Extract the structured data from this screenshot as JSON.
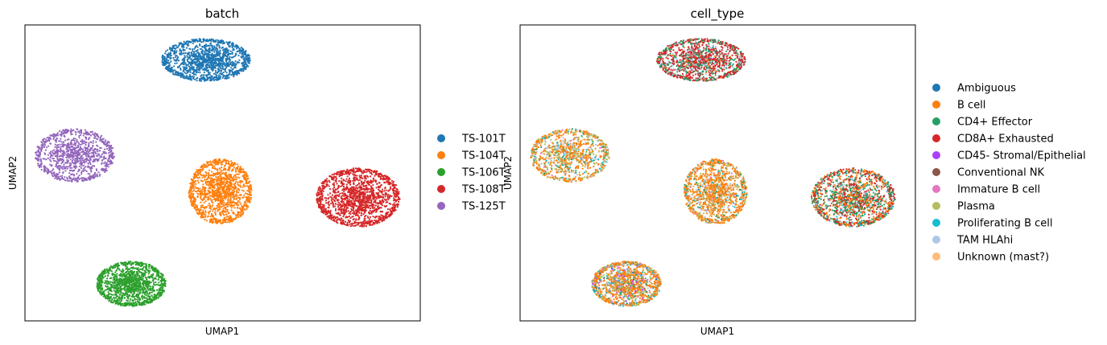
{
  "chart_data": [
    {
      "type": "scatter",
      "title": "batch",
      "xlabel": "UMAP1",
      "ylabel": "UMAP2",
      "xlim": [
        0,
        100
      ],
      "ylim": [
        0,
        100
      ],
      "grid": false,
      "legend_position": "right",
      "series": [
        {
          "name": "TS-101T",
          "color": "#1f77b4",
          "cluster": {
            "cx": 45.8,
            "cy": 88.2,
            "rx": 11.2,
            "ry": 7.2,
            "n": 1400
          }
        },
        {
          "name": "TS-104T",
          "color": "#ff7f0e",
          "cluster": {
            "cx": 49.4,
            "cy": 43.7,
            "rx": 8.0,
            "ry": 11.0,
            "n": 1400
          }
        },
        {
          "name": "TS-106T",
          "color": "#2ca02c",
          "cluster": {
            "cx": 26.9,
            "cy": 12.5,
            "rx": 8.8,
            "ry": 7.6,
            "n": 1400
          }
        },
        {
          "name": "TS-108T",
          "color": "#d62728",
          "cluster": {
            "cx": 84.3,
            "cy": 41.7,
            "rx": 10.6,
            "ry": 9.9,
            "n": 1600
          }
        },
        {
          "name": "TS-125T",
          "color": "#9467bd",
          "cluster": {
            "cx": 12.6,
            "cy": 55.9,
            "rx": 10.0,
            "ry": 9.0,
            "n": 1100
          }
        }
      ]
    },
    {
      "type": "scatter",
      "title": "cell_type",
      "xlabel": "UMAP1",
      "ylabel": "UMAP2",
      "xlim": [
        0,
        100
      ],
      "ylim": [
        0,
        100
      ],
      "grid": false,
      "legend_position": "right",
      "series": [
        {
          "name": "Ambiguous",
          "color": "#1f77b4"
        },
        {
          "name": "B cell",
          "color": "#ff7f0e"
        },
        {
          "name": "CD4+ Effector",
          "color": "#279e68"
        },
        {
          "name": "CD8A+ Exhausted",
          "color": "#d62728"
        },
        {
          "name": "CD45- Stromal/Epithelial",
          "color": "#aa40fc"
        },
        {
          "name": "Conventional NK",
          "color": "#8c564b"
        },
        {
          "name": "Immature B cell",
          "color": "#e377c2"
        },
        {
          "name": "Plasma",
          "color": "#b5bd61"
        },
        {
          "name": "Proliferating B cell",
          "color": "#17becf"
        },
        {
          "name": "TAM HLAhi",
          "color": "#aec7e8"
        },
        {
          "name": "Unknown (mast?)",
          "color": "#ffbb78"
        }
      ],
      "clusters": [
        {
          "cx": 45.8,
          "cy": 88.2,
          "rx": 11.2,
          "ry": 7.2,
          "n": 1400,
          "mix": {
            "CD8A+ Exhausted": 0.55,
            "CD4+ Effector": 0.25,
            "TAM HLAhi": 0.1,
            "Conventional NK": 0.06,
            "B cell": 0.04
          }
        },
        {
          "cx": 49.4,
          "cy": 43.7,
          "rx": 8.0,
          "ry": 11.0,
          "n": 1400,
          "mix": {
            "B cell": 0.6,
            "Plasma": 0.15,
            "TAM HLAhi": 0.08,
            "CD4+ Effector": 0.06,
            "Unknown (mast?)": 0.05,
            "Immature B cell": 0.03,
            "Proliferating B cell": 0.03
          }
        },
        {
          "cx": 26.9,
          "cy": 12.5,
          "rx": 8.8,
          "ry": 7.6,
          "n": 1400,
          "mix": {
            "B cell": 0.5,
            "Plasma": 0.18,
            "TAM HLAhi": 0.08,
            "CD4+ Effector": 0.07,
            "Immature B cell": 0.06,
            "Proliferating B cell": 0.05,
            "Ambiguous": 0.03,
            "CD45- Stromal/Epithelial": 0.03
          }
        },
        {
          "cx": 84.3,
          "cy": 41.7,
          "rx": 10.6,
          "ry": 9.9,
          "n": 1600,
          "mix": {
            "CD4+ Effector": 0.3,
            "CD8A+ Exhausted": 0.3,
            "B cell": 0.25,
            "TAM HLAhi": 0.08,
            "Proliferating B cell": 0.04,
            "Conventional NK": 0.03
          }
        },
        {
          "cx": 12.6,
          "cy": 55.9,
          "rx": 10.0,
          "ry": 9.0,
          "n": 1100,
          "mix": {
            "B cell": 0.45,
            "Plasma": 0.25,
            "TAM HLAhi": 0.1,
            "CD4+ Effector": 0.08,
            "Proliferating B cell": 0.05,
            "Unknown (mast?)": 0.04,
            "Immature B cell": 0.03
          }
        }
      ]
    }
  ]
}
